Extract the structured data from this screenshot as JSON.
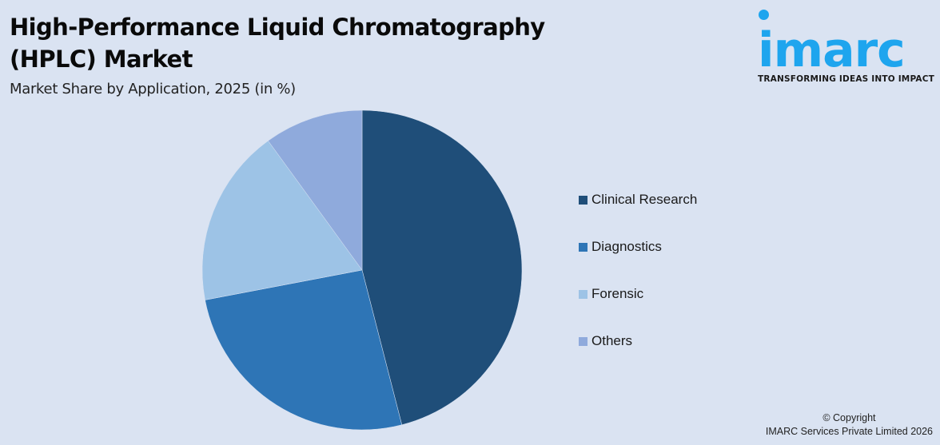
{
  "header": {
    "title": "High-Performance Liquid Chromatography (HPLC) Market",
    "subtitle": "Market Share by Application, 2025 (in %)"
  },
  "logo": {
    "wordmark": "imarc",
    "tagline": "TRANSFORMING IDEAS INTO IMPACT",
    "color": "#1ea5ee"
  },
  "footer": {
    "copyright": "© Copyright",
    "company": "IMARC Services Private Limited 2026"
  },
  "chart_data": {
    "type": "pie",
    "title": "High-Performance Liquid Chromatography (HPLC) Market",
    "subtitle": "Market Share by Application, 2025 (in %)",
    "categories": [
      "Clinical Research",
      "Diagnostics",
      "Forensic",
      "Others"
    ],
    "values": [
      46,
      26,
      18,
      10
    ],
    "colors": [
      "#1f4e79",
      "#2e75b6",
      "#9dc3e6",
      "#8faadc"
    ],
    "start_angle_deg": 0,
    "direction": "clockwise",
    "data_labels": false,
    "legend_position": "right"
  }
}
